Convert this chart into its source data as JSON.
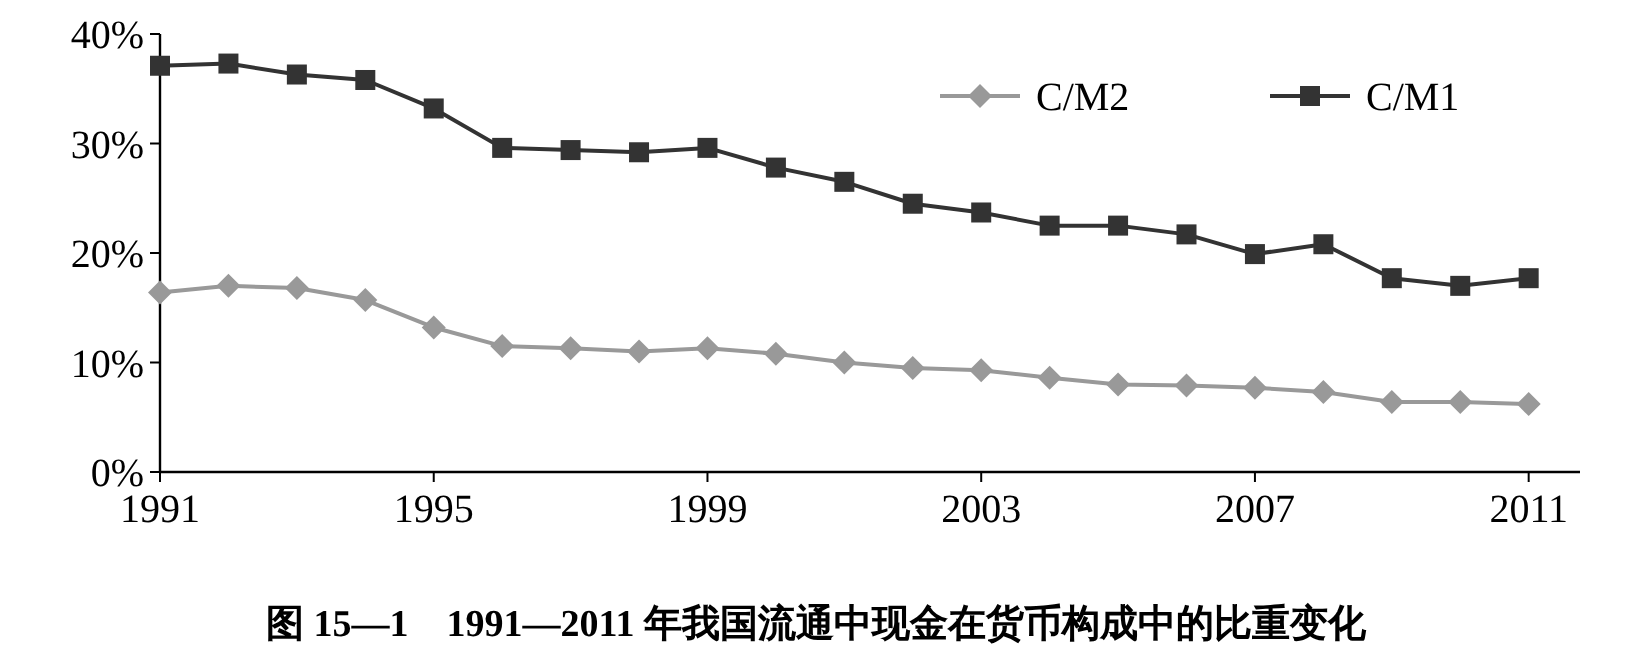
{
  "chart_data": {
    "type": "line",
    "title": "图 15—1　1991—2011 年我国流通中现金在货币构成中的比重变化",
    "x": [
      1991,
      1992,
      1993,
      1994,
      1995,
      1996,
      1997,
      1998,
      1999,
      2000,
      2001,
      2002,
      2003,
      2004,
      2005,
      2006,
      2007,
      2008,
      2009,
      2010,
      2011
    ],
    "series": [
      {
        "name": "C/M2",
        "color": "#999999",
        "marker": "diamond",
        "values": [
          16.4,
          17.0,
          16.8,
          15.7,
          13.2,
          11.5,
          11.3,
          11.0,
          11.3,
          10.8,
          10.0,
          9.5,
          9.3,
          8.6,
          8.0,
          7.9,
          7.7,
          7.3,
          6.4,
          6.4,
          6.2
        ]
      },
      {
        "name": "C/M1",
        "color": "#333333",
        "marker": "square",
        "values": [
          37.1,
          37.3,
          36.3,
          35.8,
          33.2,
          29.6,
          29.4,
          29.2,
          29.6,
          27.8,
          26.5,
          24.5,
          23.7,
          22.5,
          22.5,
          21.7,
          19.9,
          20.8,
          17.7,
          17.0,
          17.7
        ]
      }
    ],
    "xlim": [
      1991,
      2011.75
    ],
    "xticks": [
      1991,
      1995,
      1999,
      2003,
      2007,
      2011
    ],
    "ylim": [
      0,
      40
    ],
    "yticks": [
      {
        "value": 0,
        "label": "0%"
      },
      {
        "value": 10,
        "label": "10%"
      },
      {
        "value": 20,
        "label": "20%"
      },
      {
        "value": 30,
        "label": "30%"
      },
      {
        "value": 40,
        "label": "40%"
      }
    ],
    "grid": false,
    "legend": "top right",
    "line_style": "solid"
  }
}
